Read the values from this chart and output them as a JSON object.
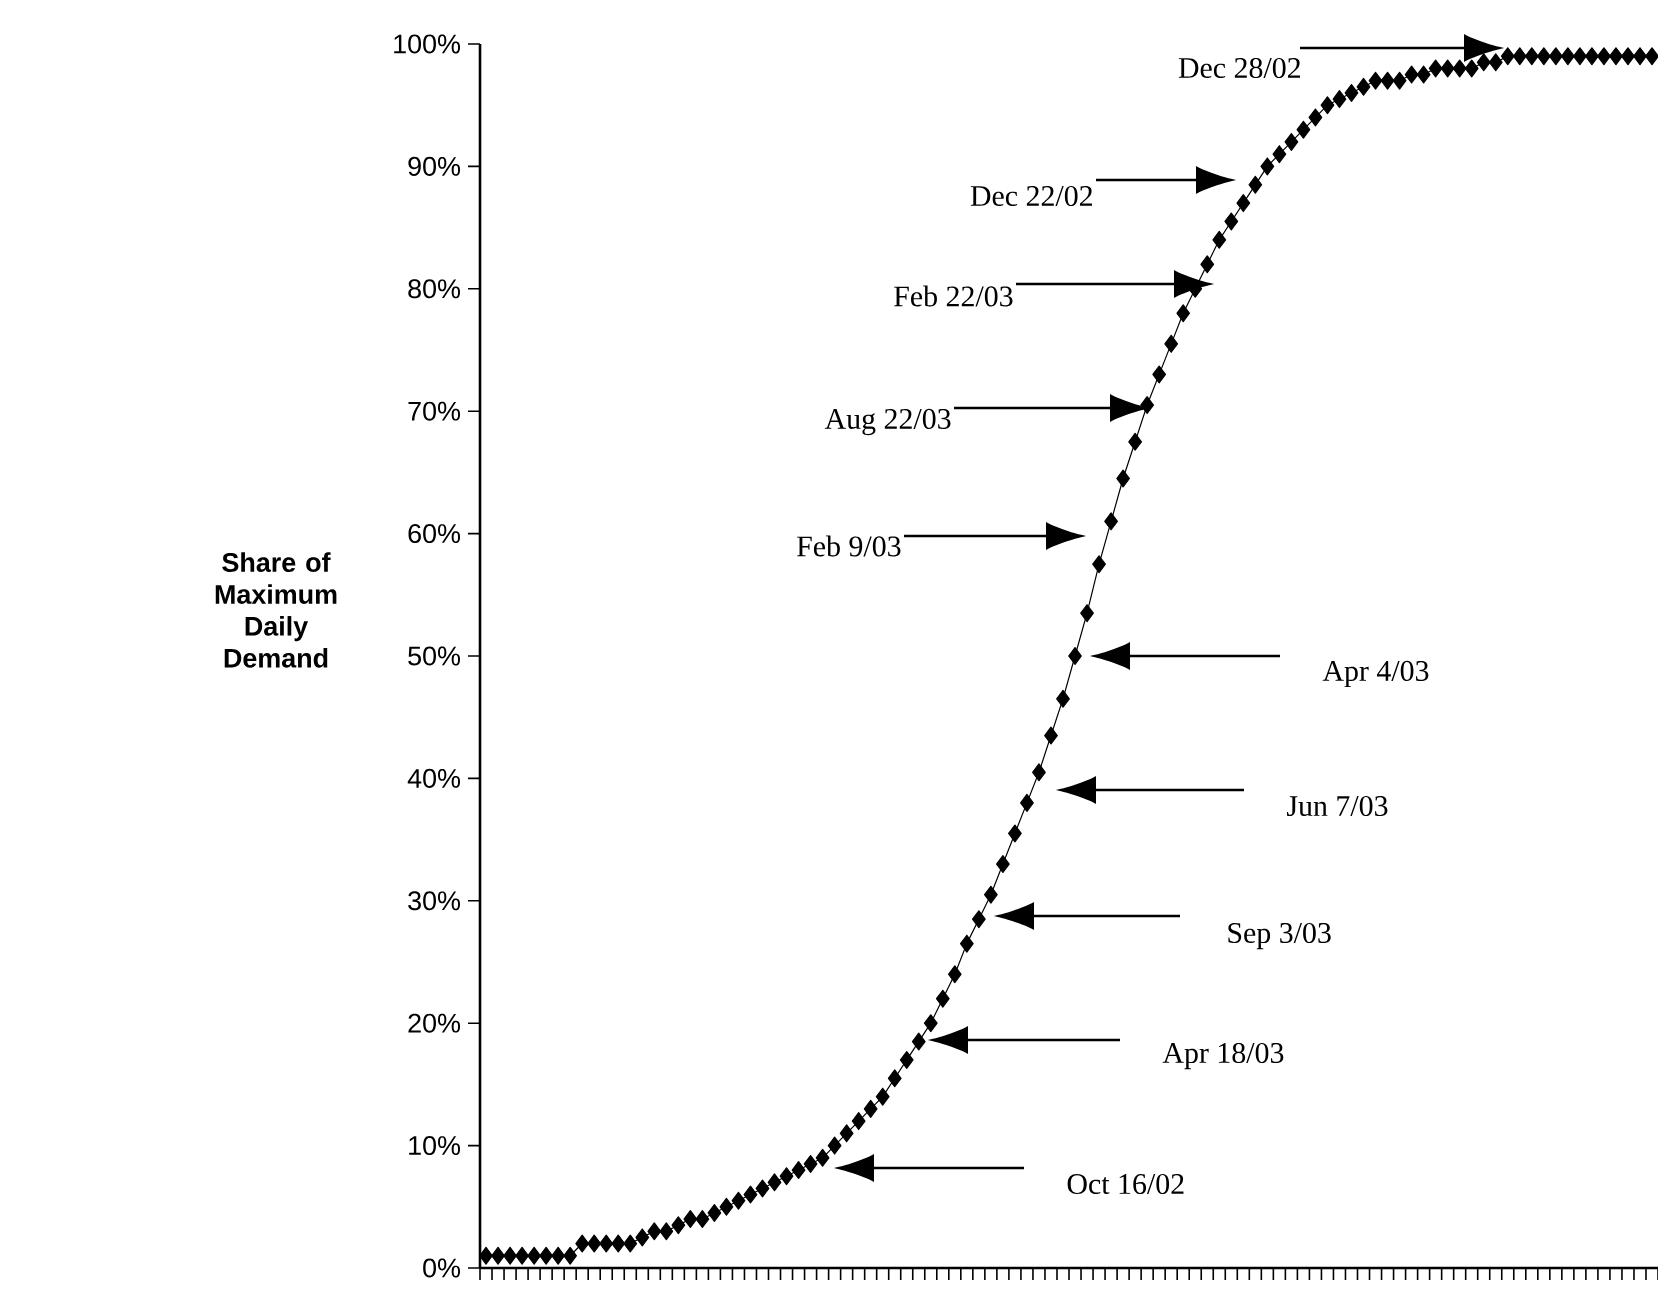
{
  "chart_data": {
    "type": "line",
    "ylabel": "Share of Maximum Daily Demand",
    "categories": [
      null,
      null,
      null,
      null,
      null,
      null,
      null,
      null,
      null,
      null,
      null,
      null,
      null,
      null,
      null,
      null,
      null,
      null,
      null,
      null,
      null,
      null,
      null,
      null,
      null,
      null,
      null,
      null,
      null,
      null,
      null,
      null,
      null,
      null,
      null,
      null,
      null,
      null,
      null,
      null,
      null,
      null,
      null,
      null,
      null,
      null,
      null,
      null,
      null,
      null,
      null,
      null,
      null,
      null,
      null,
      null,
      null,
      null,
      null,
      null,
      null,
      null,
      null,
      null,
      null,
      null,
      null,
      null,
      null,
      null,
      null,
      null,
      null,
      null,
      null,
      null,
      null,
      null,
      null,
      null,
      null,
      null,
      null,
      null,
      null,
      null,
      null,
      null,
      null,
      null,
      null,
      null,
      null,
      null,
      null,
      null,
      null,
      null
    ],
    "values": [
      1,
      1,
      1,
      1,
      1,
      1,
      1,
      1,
      2,
      2,
      2,
      2,
      2,
      2.5,
      3,
      3,
      3.5,
      4,
      4,
      4.5,
      5,
      5.5,
      6,
      6.5,
      7,
      7.5,
      8,
      8.5,
      9,
      10,
      11,
      12,
      13,
      14,
      15.5,
      17,
      18.5,
      20,
      22,
      24,
      26.5,
      28.5,
      30.5,
      33,
      35.5,
      38,
      40.5,
      43.5,
      46.5,
      50,
      53.5,
      57.5,
      61,
      64.5,
      67.5,
      70.5,
      73,
      75.5,
      78,
      80,
      82,
      84,
      85.5,
      87,
      88.5,
      90,
      91,
      92,
      93,
      94,
      95,
      95.5,
      96,
      96.5,
      97,
      97,
      97,
      97.5,
      97.5,
      98,
      98,
      98,
      98,
      98.5,
      98.5,
      99,
      99,
      99,
      99,
      99,
      99,
      99,
      99,
      99,
      99,
      99,
      99,
      99
    ],
    "color": "#000000",
    "marker": "diamond",
    "line_style": "solid",
    "ylim": [
      0,
      100
    ],
    "yticks": [
      {
        "value": 0,
        "label": "0%"
      },
      {
        "value": 10,
        "label": "10%"
      },
      {
        "value": 20,
        "label": "20%"
      },
      {
        "value": 30,
        "label": "30%"
      },
      {
        "value": 40,
        "label": "40%"
      },
      {
        "value": 50,
        "label": "50%"
      },
      {
        "value": 60,
        "label": "60%"
      },
      {
        "value": 70,
        "label": "70%"
      },
      {
        "value": 80,
        "label": "80%"
      },
      {
        "value": 90,
        "label": "90%"
      },
      {
        "value": 100,
        "label": "100%"
      }
    ],
    "tick_labels": "y",
    "annotations": [
      "Dec 28/02",
      "Dec 22/02",
      "Feb 22/03",
      "Aug 22/03",
      "Feb 9/03",
      "Apr 4/03",
      "Jun 7/03",
      "Sep 3/03",
      "Apr 18/03",
      "Oct 16/02"
    ]
  }
}
